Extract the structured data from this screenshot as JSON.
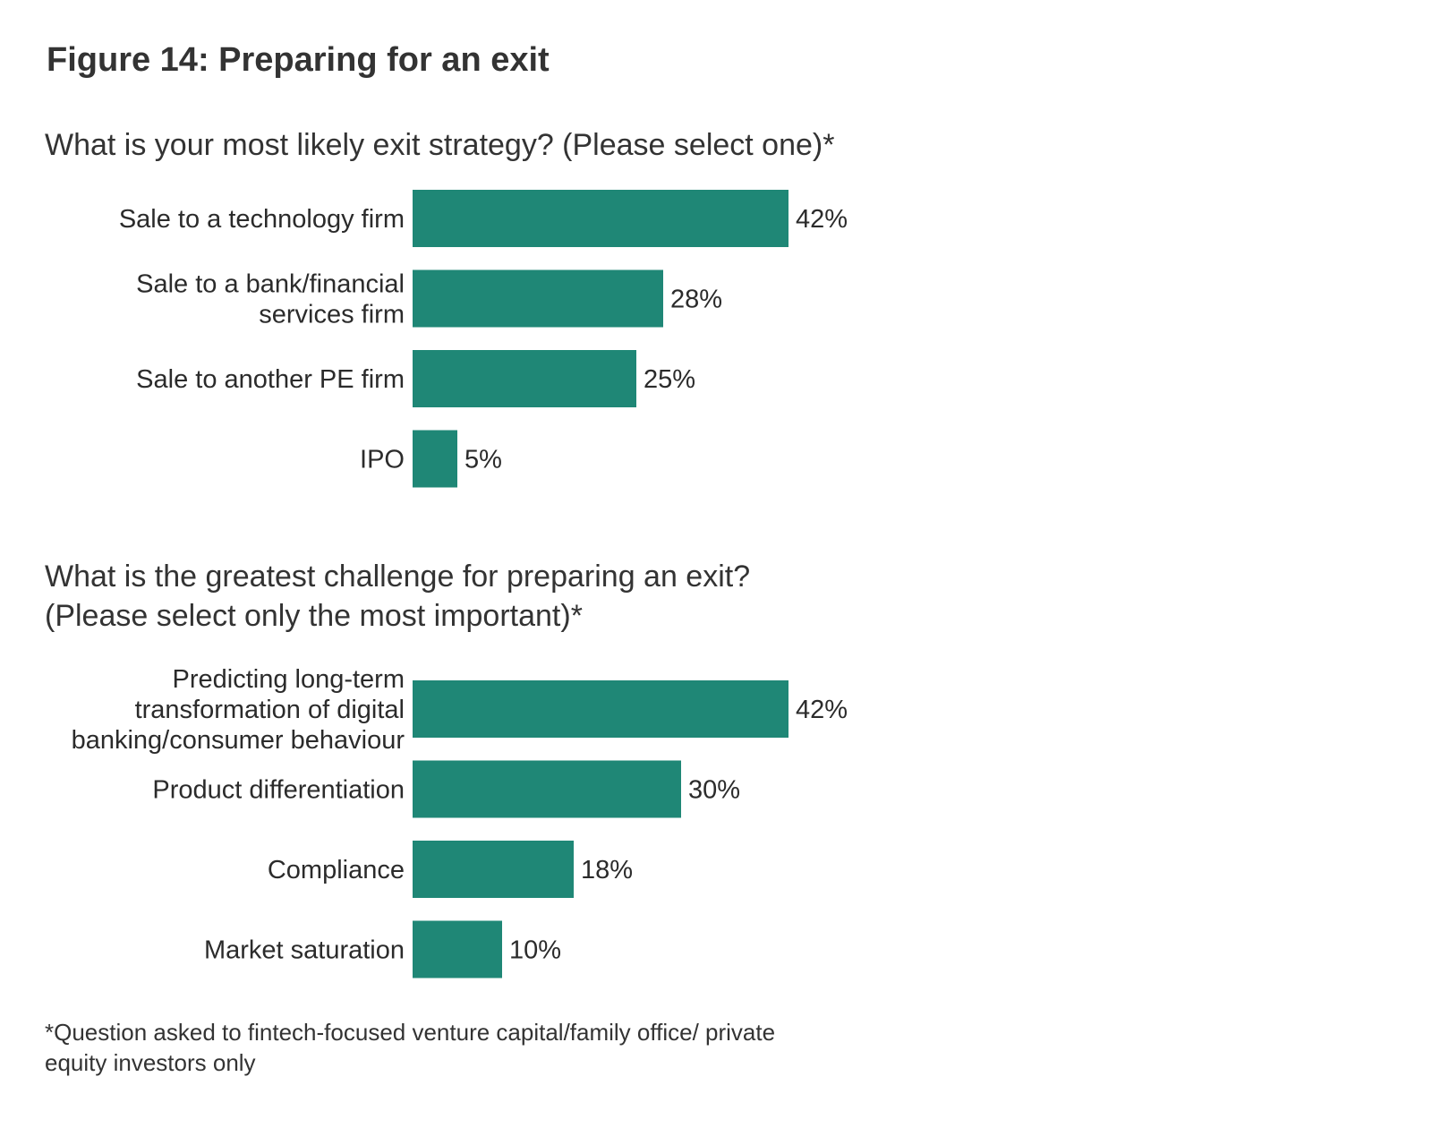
{
  "figure_title": "Figure 14: Preparing for an exit",
  "footnote": "*Question asked to fintech-focused venture capital/family office/ private equity investors only",
  "colors": {
    "bar": "#1f8776"
  },
  "chart_data": [
    {
      "type": "bar",
      "orientation": "horizontal",
      "title": "What is your most likely exit strategy? (Please select one)*",
      "categories": [
        [
          "Sale to a technology firm"
        ],
        [
          "Sale to a bank/financial",
          "services firm"
        ],
        [
          "Sale to another PE firm"
        ],
        [
          "IPO"
        ]
      ],
      "values": [
        42,
        28,
        25,
        5
      ],
      "value_labels": [
        "42%",
        "28%",
        "25%",
        "5%"
      ],
      "unit": "%",
      "xlim": [
        0,
        42
      ],
      "grid": false,
      "legend": "none"
    },
    {
      "type": "bar",
      "orientation": "horizontal",
      "title": "What is the greatest challenge for preparing an exit? (Please select only the most important)*",
      "categories": [
        [
          "Predicting long-term",
          "transformation of digital",
          "banking/consumer behaviour"
        ],
        [
          "Product differentiation"
        ],
        [
          "Compliance"
        ],
        [
          "Market saturation"
        ]
      ],
      "values": [
        42,
        30,
        18,
        10
      ],
      "value_labels": [
        "42%",
        "30%",
        "18%",
        "10%"
      ],
      "unit": "%",
      "xlim": [
        0,
        42
      ],
      "grid": false,
      "legend": "none"
    }
  ]
}
